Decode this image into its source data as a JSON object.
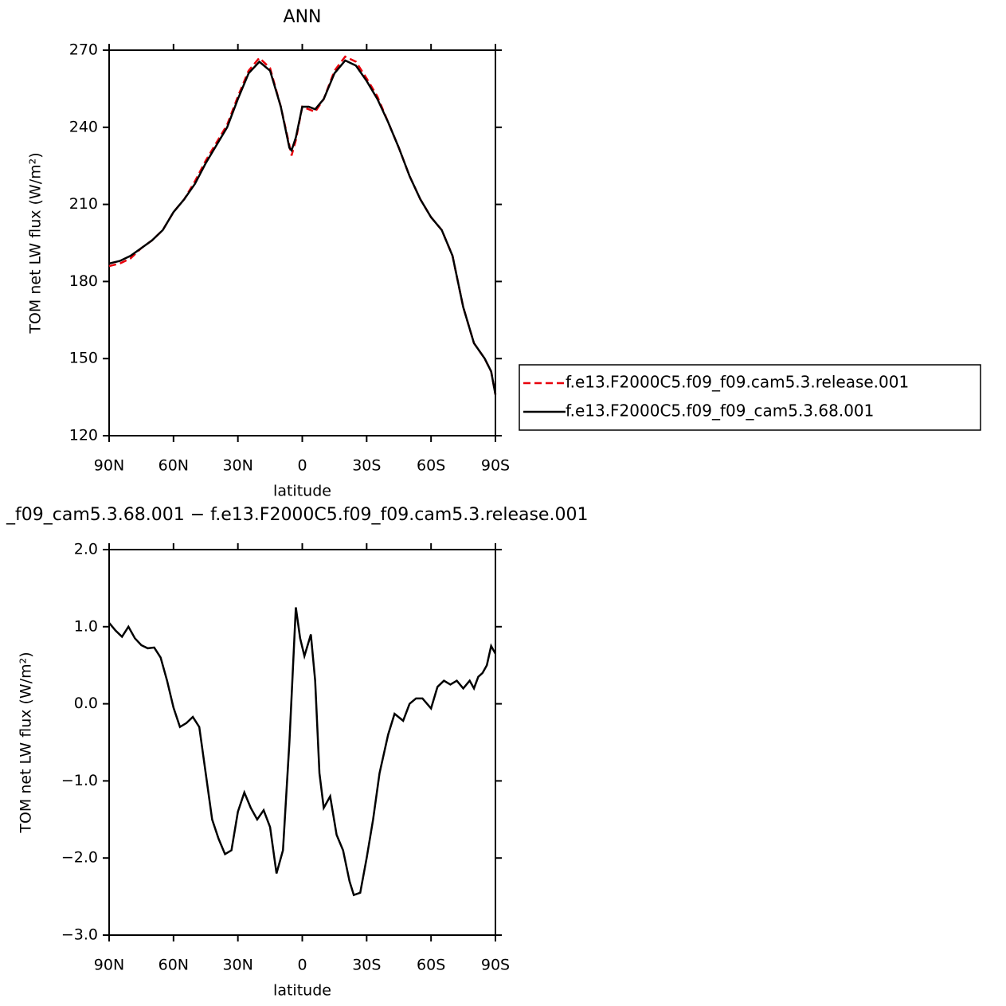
{
  "chart_data": [
    {
      "type": "line",
      "title": "ANN",
      "xlabel": "latitude",
      "ylabel": "TOM net LW flux (W/m²)",
      "x": [
        90,
        85,
        80,
        75,
        70,
        65,
        60,
        55,
        50,
        45,
        40,
        35,
        30,
        25,
        20,
        15,
        10,
        6,
        5,
        3,
        0,
        -3,
        -6,
        -10,
        -15,
        -20,
        -25,
        -30,
        -35,
        -40,
        -45,
        -50,
        -55,
        -60,
        -65,
        -70,
        -75,
        -80,
        -85,
        -88,
        -90
      ],
      "series": [
        {
          "name": "f.e13.F2000C5.f09_f09.cam5.3.release.001",
          "color": "#e8000b",
          "dash": true,
          "values": [
            186,
            187,
            189,
            193,
            196,
            200,
            207,
            212,
            219,
            227,
            234,
            241,
            252,
            262,
            267,
            263,
            248,
            233,
            229,
            235,
            248,
            247,
            246,
            251,
            262,
            267.5,
            265.5,
            259,
            252,
            242,
            232,
            221,
            212,
            205,
            200,
            190,
            170,
            156,
            150,
            145,
            136
          ]
        },
        {
          "name": "f.e13.F2000C5.f09_f09_cam5.3.68.001",
          "color": "#000000",
          "dash": false,
          "values": [
            187,
            188,
            190,
            193,
            196,
            200,
            207,
            212,
            218,
            226,
            233,
            240,
            251,
            261,
            265.5,
            262,
            248,
            232,
            231,
            236,
            248,
            248,
            247,
            251,
            261,
            266,
            264,
            258,
            251,
            242,
            232,
            221,
            212,
            205,
            200,
            190,
            170,
            156,
            150,
            145,
            136
          ]
        }
      ],
      "xlim": [
        90,
        -90
      ],
      "xticks": [
        {
          "value": 90,
          "label": "90N"
        },
        {
          "value": 60,
          "label": "60N"
        },
        {
          "value": 30,
          "label": "30N"
        },
        0,
        {
          "value": -30,
          "label": "30S"
        },
        {
          "value": -60,
          "label": "60S"
        },
        {
          "value": -90,
          "label": "90S"
        }
      ],
      "ylim": [
        120,
        270
      ],
      "yticks": [
        120,
        150,
        180,
        210,
        240,
        270
      ],
      "legend": "right"
    },
    {
      "type": "line",
      "title": "_f09_cam5.3.68.001 − f.e13.F2000C5.f09_f09.cam5.3.release.001",
      "xlabel": "latitude",
      "ylabel": "TOM net LW flux (W/m²)",
      "x": [
        90,
        87,
        84,
        81,
        78,
        75,
        72,
        69,
        66,
        63,
        60,
        57,
        54,
        51,
        48,
        45,
        42,
        39,
        36,
        33,
        30,
        27,
        24,
        21,
        18,
        15,
        12,
        9,
        6,
        3,
        1,
        -1,
        -4,
        -6,
        -8,
        -10,
        -13,
        -16,
        -19,
        -22,
        -24,
        -27,
        -30,
        -33,
        -36,
        -40,
        -43,
        -47,
        -50,
        -53,
        -56,
        -60,
        -63,
        -66,
        -69,
        -72,
        -75,
        -78,
        -80,
        -82,
        -84,
        -86,
        -88,
        -90
      ],
      "values": [
        1.05,
        0.95,
        0.87,
        1.0,
        0.85,
        0.76,
        0.72,
        0.73,
        0.6,
        0.3,
        -0.05,
        -0.3,
        -0.25,
        -0.17,
        -0.3,
        -0.9,
        -1.5,
        -1.75,
        -1.95,
        -1.9,
        -1.4,
        -1.15,
        -1.35,
        -1.5,
        -1.38,
        -1.6,
        -2.2,
        -1.9,
        -0.5,
        1.25,
        0.85,
        0.62,
        0.9,
        0.3,
        -0.9,
        -1.35,
        -1.2,
        -1.7,
        -1.9,
        -2.3,
        -2.48,
        -2.45,
        -2.0,
        -1.5,
        -0.9,
        -0.4,
        -0.13,
        -0.22,
        0.0,
        0.07,
        0.07,
        -0.06,
        0.22,
        0.3,
        0.25,
        0.3,
        0.2,
        0.3,
        0.2,
        0.35,
        0.4,
        0.5,
        0.75,
        0.65
      ],
      "color": "#000000",
      "xlim": [
        90,
        -90
      ],
      "xticks": [
        {
          "value": 90,
          "label": "90N"
        },
        {
          "value": 60,
          "label": "60N"
        },
        {
          "value": 30,
          "label": "30N"
        },
        0,
        {
          "value": -30,
          "label": "30S"
        },
        {
          "value": -60,
          "label": "60S"
        },
        {
          "value": -90,
          "label": "90S"
        }
      ],
      "ylim": [
        -3,
        2
      ],
      "yticks": [
        {
          "value": -3,
          "label": "−3.0"
        },
        {
          "value": -2,
          "label": "−2.0"
        },
        {
          "value": -1,
          "label": "−1.0"
        },
        {
          "value": 0,
          "label": "0.0"
        },
        {
          "value": 1,
          "label": "1.0"
        },
        {
          "value": 2,
          "label": "2.0"
        }
      ]
    }
  ]
}
